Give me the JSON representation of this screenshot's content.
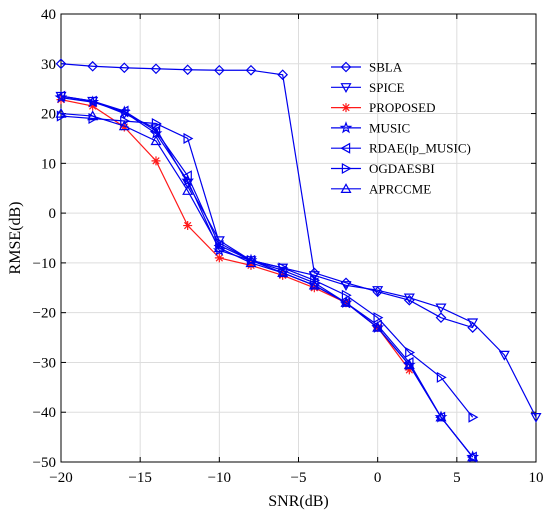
{
  "chart_data": {
    "type": "line",
    "xlabel": "SNR(dB)",
    "ylabel": "RMSE(dB)",
    "xlim": [
      -20,
      10
    ],
    "ylim": [
      -50,
      40
    ],
    "xticks": [
      -20,
      -15,
      -10,
      -5,
      0,
      5,
      10
    ],
    "yticks": [
      -50,
      -40,
      -30,
      -20,
      -10,
      0,
      10,
      20,
      30,
      40
    ],
    "xtick_labels": [
      "−20",
      "−15",
      "−10",
      "−5",
      "0",
      "5",
      "10"
    ],
    "ytick_labels": [
      "−50",
      "−40",
      "−30",
      "−20",
      "−10",
      "0",
      "10",
      "20",
      "30",
      "40"
    ],
    "grid": true,
    "legend_position": "top-right",
    "series": [
      {
        "name": "SBLA",
        "color": "#0000ee",
        "marker": "diamond",
        "x": [
          -20,
          -18,
          -16,
          -14,
          -12,
          -10,
          -8,
          -6,
          -4,
          -2,
          0,
          2,
          4,
          6
        ],
        "y": [
          30,
          29.5,
          29.2,
          29,
          28.8,
          28.7,
          28.7,
          27.8,
          -12,
          -14,
          -15.8,
          -17.5,
          -21,
          -23
        ]
      },
      {
        "name": "SPICE",
        "color": "#0000ee",
        "marker": "triangle-down",
        "x": [
          -20,
          -18,
          -16,
          -14,
          -12,
          -10,
          -8,
          -6,
          -4,
          -2,
          0,
          2,
          4,
          6,
          8,
          10
        ],
        "y": [
          23.5,
          22.5,
          20,
          17,
          6,
          -5.5,
          -9.5,
          -11,
          -12.5,
          -14.5,
          -15.5,
          -17,
          -19,
          -22,
          -28.5,
          -41
        ]
      },
      {
        "name": "PROPOSED",
        "color": "#ff1a1a",
        "marker": "asterisk",
        "x": [
          -20,
          -18,
          -16,
          -14,
          -12,
          -10,
          -8,
          -6,
          -4,
          -2,
          0,
          2
        ],
        "y": [
          22.8,
          21.5,
          17.3,
          10.5,
          -2.5,
          -9,
          -10.5,
          -12.5,
          -15,
          -18,
          -23,
          -31.5
        ]
      },
      {
        "name": "MUSIC",
        "color": "#0000ee",
        "marker": "star",
        "x": [
          -20,
          -18,
          -16,
          -14,
          -12,
          -10,
          -8,
          -6,
          -4,
          -2,
          0,
          2,
          4,
          6
        ],
        "y": [
          23.2,
          22.3,
          20.3,
          16,
          6.5,
          -7.5,
          -9.5,
          -12,
          -14.5,
          -18,
          -23,
          -30.5,
          -41,
          -49
        ]
      },
      {
        "name": "RDAE(lp_MUSIC)",
        "color": "#0000ee",
        "marker": "triangle-left",
        "x": [
          -20,
          -18,
          -16,
          -14,
          -12,
          -10,
          -8,
          -6,
          -4,
          -2,
          0,
          2,
          4,
          6
        ],
        "y": [
          23.5,
          22.5,
          20.5,
          16.5,
          7.5,
          -6.5,
          -9.5,
          -11.5,
          -14,
          -18,
          -22.5,
          -30,
          -41,
          -49
        ]
      },
      {
        "name": "OGDAESBI",
        "color": "#0000ee",
        "marker": "triangle-right",
        "x": [
          -20,
          -18,
          -16,
          -14,
          -12,
          -10,
          -8,
          -6,
          -4,
          -2,
          0,
          2,
          4,
          6
        ],
        "y": [
          19.5,
          19,
          18.5,
          18,
          15,
          -6,
          -9.5,
          -11,
          -13.5,
          -16.5,
          -21,
          -28,
          -33,
          -41
        ]
      },
      {
        "name": "APRCCME",
        "color": "#0000ee",
        "marker": "triangle-up",
        "x": [
          -20,
          -18,
          -16,
          -14,
          -12,
          -10,
          -8,
          -6,
          -4,
          -2,
          0,
          2,
          4,
          6
        ],
        "y": [
          20,
          19.5,
          17.5,
          14.5,
          4.5,
          -7,
          -10,
          -12,
          -14.5,
          -18,
          -23,
          -30.5,
          -41,
          -49
        ]
      }
    ]
  }
}
